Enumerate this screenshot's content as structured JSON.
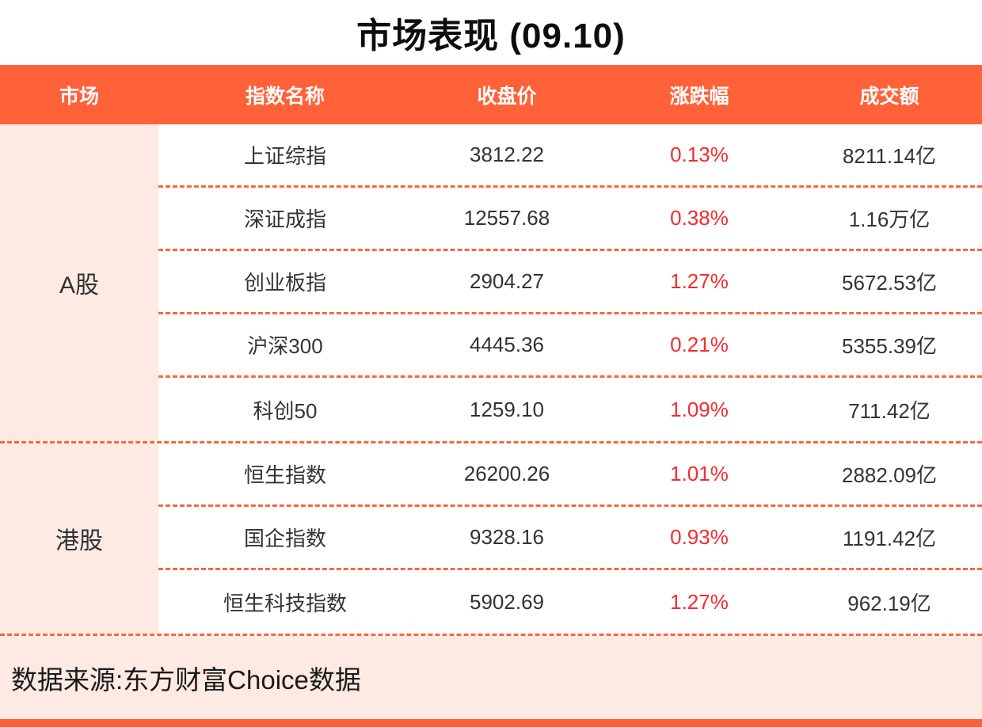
{
  "title": "市场表现 (09.10)",
  "source": "数据来源:东方财富Choice数据",
  "colors": {
    "accent_orange": "#ff6138",
    "row_pink": "#fdeae3",
    "change_red": "#f62c2c",
    "dashed_line": "#f9663e",
    "title_black": "#0d0d0d"
  },
  "table": {
    "columns": [
      "市场",
      "指数名称",
      "收盘价",
      "涨跌幅",
      "成交额"
    ],
    "groups": [
      {
        "market": "A股",
        "rows": [
          {
            "name": "上证综指",
            "close": "3812.22",
            "change": "0.13%",
            "turnover": "8211.14亿"
          },
          {
            "name": "深证成指",
            "close": "12557.68",
            "change": "0.38%",
            "turnover": "1.16万亿"
          },
          {
            "name": "创业板指",
            "close": "2904.27",
            "change": "1.27%",
            "turnover": "5672.53亿"
          },
          {
            "name": "沪深300",
            "close": "4445.36",
            "change": "0.21%",
            "turnover": "5355.39亿"
          },
          {
            "name": "科创50",
            "close": "1259.10",
            "change": "1.09%",
            "turnover": "711.42亿"
          }
        ]
      },
      {
        "market": "港股",
        "rows": [
          {
            "name": "恒生指数",
            "close": "26200.26",
            "change": "1.01%",
            "turnover": "2882.09亿"
          },
          {
            "name": "国企指数",
            "close": "9328.16",
            "change": "0.93%",
            "turnover": "1191.42亿"
          },
          {
            "name": "恒生科技指数",
            "close": "5902.69",
            "change": "1.27%",
            "turnover": "962.19亿"
          }
        ]
      }
    ]
  },
  "chart_data": {
    "type": "table",
    "title": "市场表现 (09.10)",
    "columns": [
      "市场",
      "指数名称",
      "收盘价",
      "涨跌幅",
      "成交额"
    ],
    "rows": [
      [
        "A股",
        "上证综指",
        3812.22,
        "0.13%",
        "8211.14亿"
      ],
      [
        "A股",
        "深证成指",
        12557.68,
        "0.38%",
        "1.16万亿"
      ],
      [
        "A股",
        "创业板指",
        2904.27,
        "1.27%",
        "5672.53亿"
      ],
      [
        "A股",
        "沪深300",
        4445.36,
        "0.21%",
        "5355.39亿"
      ],
      [
        "A股",
        "科创50",
        1259.1,
        "1.09%",
        "711.42亿"
      ],
      [
        "港股",
        "恒生指数",
        26200.26,
        "1.01%",
        "2882.09亿"
      ],
      [
        "港股",
        "国企指数",
        9328.16,
        "0.93%",
        "1191.42亿"
      ],
      [
        "港股",
        "恒生科技指数",
        5902.69,
        "1.27%",
        "962.19亿"
      ]
    ],
    "notes": "涨跌幅 values rendered in red; source footer: 数据来源:东方财富Choice数据"
  }
}
